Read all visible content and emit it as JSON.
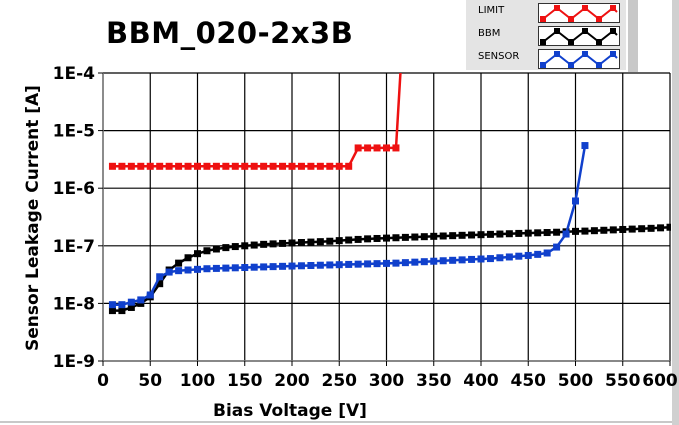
{
  "chart_data": {
    "type": "line",
    "title": "BBM_020-2x3B",
    "xlabel": "Bias Voltage [V]",
    "ylabel": "Sensor Leakage Current [A]",
    "xlim": [
      0,
      600
    ],
    "ylim": [
      1e-09,
      0.0001
    ],
    "yscale": "log",
    "grid": true,
    "legend_placement": "top-right",
    "xticks": [
      "0",
      "50",
      "100",
      "150",
      "200",
      "250",
      "300",
      "350",
      "400",
      "450",
      "500",
      "550",
      "600"
    ],
    "yticks": [
      "1E-9",
      "1E-8",
      "1E-7",
      "1E-6",
      "1E-5",
      "1E-4"
    ],
    "series": [
      {
        "name": "LIMIT",
        "color": "#ee1111",
        "x": [
          10,
          20,
          30,
          40,
          50,
          60,
          70,
          80,
          90,
          100,
          110,
          120,
          130,
          140,
          150,
          160,
          170,
          180,
          190,
          200,
          210,
          220,
          230,
          240,
          250,
          260,
          270,
          280,
          290,
          300,
          310,
          315
        ],
        "y": [
          2.4e-06,
          2.4e-06,
          2.4e-06,
          2.4e-06,
          2.4e-06,
          2.4e-06,
          2.4e-06,
          2.4e-06,
          2.4e-06,
          2.4e-06,
          2.4e-06,
          2.4e-06,
          2.4e-06,
          2.4e-06,
          2.4e-06,
          2.4e-06,
          2.4e-06,
          2.4e-06,
          2.4e-06,
          2.4e-06,
          2.4e-06,
          2.4e-06,
          2.4e-06,
          2.4e-06,
          2.4e-06,
          2.4e-06,
          5e-06,
          5e-06,
          5e-06,
          5e-06,
          5e-06,
          0.00012
        ]
      },
      {
        "name": "BBM",
        "color": "#000000",
        "x": [
          10,
          20,
          30,
          40,
          50,
          60,
          70,
          80,
          90,
          100,
          110,
          120,
          130,
          140,
          150,
          160,
          170,
          180,
          190,
          200,
          210,
          220,
          230,
          240,
          250,
          260,
          270,
          280,
          290,
          300,
          310,
          320,
          330,
          340,
          350,
          360,
          370,
          380,
          390,
          400,
          410,
          420,
          430,
          440,
          450,
          460,
          470,
          480,
          490,
          500,
          510,
          520,
          530,
          540,
          550,
          560,
          570,
          580,
          590,
          600
        ],
        "y": [
          7.5e-09,
          7.5e-09,
          8.5e-09,
          1e-08,
          1.3e-08,
          2.2e-08,
          3.8e-08,
          5e-08,
          6.2e-08,
          7.3e-08,
          8.2e-08,
          8.8e-08,
          9.3e-08,
          9.7e-08,
          1e-07,
          1.03e-07,
          1.06e-07,
          1.08e-07,
          1.1e-07,
          1.12e-07,
          1.14e-07,
          1.16e-07,
          1.18e-07,
          1.2e-07,
          1.23e-07,
          1.26e-07,
          1.29e-07,
          1.32e-07,
          1.34e-07,
          1.36e-07,
          1.38e-07,
          1.4e-07,
          1.42e-07,
          1.44e-07,
          1.46e-07,
          1.48e-07,
          1.5e-07,
          1.52e-07,
          1.54e-07,
          1.56e-07,
          1.58e-07,
          1.6e-07,
          1.62e-07,
          1.64e-07,
          1.66e-07,
          1.68e-07,
          1.7e-07,
          1.72e-07,
          1.75e-07,
          1.78e-07,
          1.8e-07,
          1.83e-07,
          1.86e-07,
          1.89e-07,
          1.92e-07,
          1.95e-07,
          1.98e-07,
          2.01e-07,
          2.05e-07,
          2.1e-07
        ]
      },
      {
        "name": "SENSOR",
        "color": "#1040cc",
        "x": [
          10,
          20,
          30,
          40,
          50,
          60,
          70,
          80,
          90,
          100,
          110,
          120,
          130,
          140,
          150,
          160,
          170,
          180,
          190,
          200,
          210,
          220,
          230,
          240,
          250,
          260,
          270,
          280,
          290,
          300,
          310,
          320,
          330,
          340,
          350,
          360,
          370,
          380,
          390,
          400,
          410,
          420,
          430,
          440,
          450,
          460,
          470,
          480,
          490,
          500,
          510
        ],
        "y": [
          9.5e-09,
          9.5e-09,
          1.05e-08,
          1.15e-08,
          1.4e-08,
          2.9e-08,
          3.5e-08,
          3.7e-08,
          3.8e-08,
          3.9e-08,
          4e-08,
          4.05e-08,
          4.1e-08,
          4.15e-08,
          4.2e-08,
          4.25e-08,
          4.3e-08,
          4.35e-08,
          4.4e-08,
          4.45e-08,
          4.5e-08,
          4.55e-08,
          4.6e-08,
          4.65e-08,
          4.7e-08,
          4.75e-08,
          4.8e-08,
          4.85e-08,
          4.9e-08,
          4.95e-08,
          5e-08,
          5.1e-08,
          5.2e-08,
          5.3e-08,
          5.4e-08,
          5.5e-08,
          5.6e-08,
          5.7e-08,
          5.8e-08,
          5.9e-08,
          6e-08,
          6.2e-08,
          6.4e-08,
          6.6e-08,
          6.8e-08,
          7.1e-08,
          7.5e-08,
          9.5e-08,
          1.6e-07,
          6e-07,
          5.5e-06
        ]
      }
    ]
  }
}
